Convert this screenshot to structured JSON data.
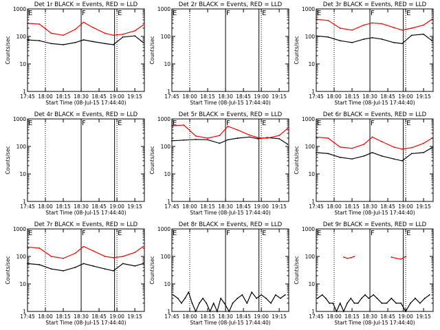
{
  "figure": {
    "x_tick_labels": [
      "17:45",
      "18:00",
      "18:15",
      "18:30",
      "18:45",
      "19:00",
      "19:15"
    ],
    "y_tick_labels": [
      "1",
      "10",
      "100",
      "1000"
    ],
    "xlabel": "Start Time (08-Jul-15 17:44:40)",
    "ylabel": "Counts/sec",
    "event_markers": [
      {
        "label": "E",
        "x": "17:45",
        "style": "dotted"
      },
      {
        "label": "",
        "x": "18:00",
        "style": "dotted"
      },
      {
        "label": "F",
        "x": "18:30",
        "style": "solid"
      },
      {
        "label": "",
        "x": "18:58",
        "style": "solid"
      },
      {
        "label": "E",
        "x": "19:00",
        "style": "dotted"
      }
    ],
    "colors": {
      "events": "#000000",
      "lld": "#ff0000",
      "axes": "#000000"
    }
  },
  "chart_data": [
    {
      "type": "line",
      "title": "Det 1r BLACK = Events, RED = LLD",
      "xlabel": "Start Time (08-Jul-15 17:44:40)",
      "ylabel": "Counts/sec",
      "log_y": true,
      "ylim": [
        1,
        1000
      ],
      "xlim": [
        "17:45",
        "19:23"
      ],
      "x": [
        "17:45",
        "17:55",
        "18:05",
        "18:15",
        "18:25",
        "18:32",
        "18:40",
        "18:50",
        "18:57",
        "19:05",
        "19:15",
        "19:22"
      ],
      "series": [
        {
          "name": "Events",
          "color": "#000000",
          "values": [
            75,
            70,
            55,
            50,
            60,
            75,
            65,
            55,
            50,
            95,
            105,
            60
          ]
        },
        {
          "name": "LLD",
          "color": "#ff0000",
          "values": [
            300,
            280,
            130,
            110,
            180,
            330,
            210,
            130,
            110,
            120,
            160,
            260
          ]
        }
      ]
    },
    {
      "type": "line",
      "title": "Det 2r BLACK = Events, RED = LLD",
      "xlabel": "Start Time (08-Jul-15 17:44:40)",
      "ylabel": "Counts/sec",
      "log_y": true,
      "ylim": [
        1,
        1000
      ],
      "xlim": [
        "17:45",
        "19:23"
      ],
      "x": [],
      "series": []
    },
    {
      "type": "line",
      "title": "Det 3r BLACK = Events, RED = LLD",
      "xlabel": "Start Time (08-Jul-15 17:44:40)",
      "ylabel": "Counts/sec",
      "log_y": true,
      "ylim": [
        1,
        1000
      ],
      "xlim": [
        "17:45",
        "19:23"
      ],
      "x": [
        "17:45",
        "17:55",
        "18:05",
        "18:15",
        "18:25",
        "18:32",
        "18:40",
        "18:50",
        "18:57",
        "19:05",
        "19:15",
        "19:22"
      ],
      "series": [
        {
          "name": "Events",
          "color": "#000000",
          "values": [
            105,
            95,
            70,
            60,
            80,
            90,
            80,
            60,
            55,
            110,
            120,
            70
          ]
        },
        {
          "name": "LLD",
          "color": "#ff0000",
          "values": [
            420,
            380,
            200,
            170,
            260,
            310,
            290,
            210,
            170,
            200,
            260,
            420
          ]
        }
      ]
    },
    {
      "type": "line",
      "title": "Det 4r BLACK = Events, RED = LLD",
      "xlabel": "Start Time (08-Jul-15 17:44:40)",
      "ylabel": "Counts/sec",
      "log_y": true,
      "ylim": [
        1,
        1000
      ],
      "xlim": [
        "17:45",
        "19:23"
      ],
      "x": [],
      "series": []
    },
    {
      "type": "line",
      "title": "Det 5r BLACK = Events, RED = LLD",
      "xlabel": "Start Time (08-Jul-15 17:44:40)",
      "ylabel": "Counts/sec",
      "log_y": true,
      "ylim": [
        1,
        1000
      ],
      "xlim": [
        "17:45",
        "19:23"
      ],
      "x": [
        "17:45",
        "17:55",
        "18:05",
        "18:15",
        "18:25",
        "18:32",
        "18:40",
        "18:50",
        "18:57",
        "19:05",
        "19:15",
        "19:22"
      ],
      "series": [
        {
          "name": "Events",
          "color": "#000000",
          "values": [
            160,
            170,
            180,
            175,
            130,
            175,
            200,
            220,
            190,
            210,
            190,
            120
          ]
        },
        {
          "name": "LLD",
          "color": "#ff0000",
          "values": [
            560,
            600,
            240,
            200,
            250,
            540,
            400,
            260,
            210,
            200,
            250,
            450
          ]
        }
      ]
    },
    {
      "type": "line",
      "title": "Det 6r BLACK = Events, RED = LLD",
      "xlabel": "Start Time (08-Jul-15 17:44:40)",
      "ylabel": "Counts/sec",
      "log_y": true,
      "ylim": [
        1,
        1000
      ],
      "xlim": [
        "17:45",
        "19:23"
      ],
      "x": [
        "17:45",
        "17:55",
        "18:05",
        "18:15",
        "18:25",
        "18:32",
        "18:40",
        "18:50",
        "18:57",
        "19:05",
        "19:15",
        "19:22"
      ],
      "series": [
        {
          "name": "Events",
          "color": "#000000",
          "values": [
            60,
            55,
            40,
            35,
            45,
            60,
            45,
            35,
            30,
            55,
            60,
            90
          ]
        },
        {
          "name": "LLD",
          "color": "#ff0000",
          "values": [
            220,
            200,
            95,
            85,
            120,
            220,
            150,
            95,
            80,
            90,
            130,
            200
          ]
        }
      ]
    },
    {
      "type": "line",
      "title": "Det 7r BLACK = Events, RED = LLD",
      "xlabel": "Start Time (08-Jul-15 17:44:40)",
      "ylabel": "Counts/sec",
      "log_y": true,
      "ylim": [
        1,
        1000
      ],
      "xlim": [
        "17:45",
        "19:23"
      ],
      "x": [
        "17:45",
        "17:55",
        "18:05",
        "18:15",
        "18:25",
        "18:32",
        "18:40",
        "18:50",
        "18:57",
        "19:05",
        "19:15",
        "19:22"
      ],
      "series": [
        {
          "name": "Events",
          "color": "#000000",
          "values": [
            55,
            50,
            35,
            30,
            40,
            55,
            45,
            35,
            30,
            55,
            45,
            55
          ]
        },
        {
          "name": "LLD",
          "color": "#ff0000",
          "values": [
            220,
            200,
            100,
            85,
            130,
            230,
            160,
            100,
            90,
            100,
            140,
            230
          ]
        }
      ]
    },
    {
      "type": "line",
      "title": "Det 8r BLACK = Events, RED = LLD",
      "xlabel": "Start Time (08-Jul-15 17:44:40)",
      "ylabel": "Counts/sec",
      "log_y": true,
      "ylim": [
        1,
        1000
      ],
      "xlim": [
        "17:45",
        "19:23"
      ],
      "x": [
        "17:46",
        "17:50",
        "17:53",
        "17:56",
        "17:59",
        "18:02",
        "18:05",
        "18:08",
        "18:11",
        "18:14",
        "18:17",
        "18:20",
        "18:23",
        "18:26",
        "18:29",
        "18:33",
        "18:36",
        "18:40",
        "18:44",
        "18:48",
        "18:52",
        "18:56",
        "19:00",
        "19:04",
        "19:08",
        "19:12",
        "19:16",
        "19:20"
      ],
      "series": [
        {
          "name": "Events",
          "color": "#000000",
          "values": [
            4,
            3,
            2,
            3,
            5,
            2,
            1,
            2,
            3,
            2,
            1,
            2,
            1,
            3,
            2,
            1,
            2,
            3,
            4,
            2,
            5,
            3,
            4,
            3,
            2,
            4,
            3,
            4
          ]
        }
      ]
    },
    {
      "type": "line",
      "title": "Det 9r BLACK = Events, RED = LLD",
      "xlabel": "Start Time (08-Jul-15 17:44:40)",
      "ylabel": "Counts/sec",
      "log_y": true,
      "ylim": [
        1,
        1000
      ],
      "xlim": [
        "17:45",
        "19:23"
      ],
      "x": [
        "17:46",
        "17:50",
        "17:53",
        "17:56",
        "17:59",
        "18:02",
        "18:05",
        "18:08",
        "18:11",
        "18:14",
        "18:17",
        "18:20",
        "18:23",
        "18:26",
        "18:29",
        "18:33",
        "18:36",
        "18:40",
        "18:44",
        "18:48",
        "18:52",
        "18:56",
        "19:00",
        "19:04",
        "19:08",
        "19:12",
        "19:16",
        "19:20"
      ],
      "series": [
        {
          "name": "Events",
          "color": "#000000",
          "values": [
            3,
            4,
            3,
            2,
            2,
            1,
            2,
            1,
            2,
            3,
            2,
            2,
            3,
            4,
            3,
            4,
            3,
            2,
            2,
            3,
            2,
            2,
            1,
            2,
            3,
            2,
            3,
            4
          ]
        },
        {
          "name": "LLD",
          "color": "#ff0000",
          "values": [
            null,
            null,
            null,
            null,
            null,
            null,
            null,
            95,
            85,
            90,
            100,
            null,
            null,
            null,
            null,
            null,
            null,
            null,
            null,
            95,
            85,
            80,
            100,
            null,
            null,
            null,
            null,
            null
          ]
        }
      ]
    }
  ]
}
